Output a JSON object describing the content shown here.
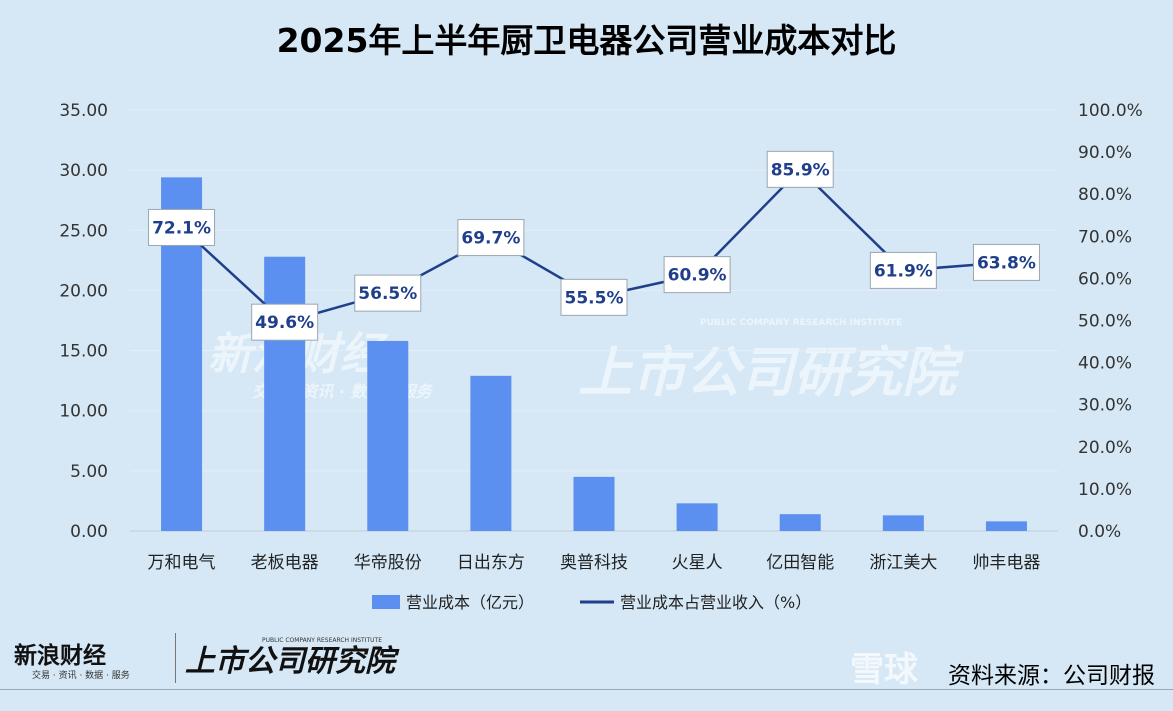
{
  "chart_data": {
    "type": "bar",
    "title": "2025年上半年厨卫电器公司营业成本对比",
    "categories": [
      "万和电气",
      "老板电器",
      "华帝股份",
      "日出东方",
      "奥普科技",
      "火星人",
      "亿田智能",
      "浙江美大",
      "帅丰电器"
    ],
    "series": [
      {
        "name": "营业成本（亿元）",
        "type": "bar",
        "axis": "left",
        "color": "#5b8ff0",
        "values": [
          29.4,
          22.8,
          15.8,
          12.9,
          4.5,
          2.3,
          1.4,
          1.3,
          0.8
        ]
      },
      {
        "name": "营业成本占营业收入（%）",
        "type": "line",
        "axis": "right",
        "color": "#1f3f8c",
        "values": [
          72.1,
          49.6,
          56.5,
          69.7,
          55.5,
          60.9,
          85.9,
          61.9,
          63.8
        ],
        "labels": [
          "72.1%",
          "49.6%",
          "56.5%",
          "69.7%",
          "55.5%",
          "60.9%",
          "85.9%",
          "61.9%",
          "63.8%"
        ]
      }
    ],
    "y_left": {
      "min": 0,
      "max": 35,
      "ticks": [
        "0.00",
        "5.00",
        "10.00",
        "15.00",
        "20.00",
        "25.00",
        "30.00",
        "35.00"
      ]
    },
    "y_right": {
      "min": 0,
      "max": 100,
      "ticks": [
        "0.0%",
        "10.0%",
        "20.0%",
        "30.0%",
        "40.0%",
        "50.0%",
        "60.0%",
        "70.0%",
        "80.0%",
        "90.0%",
        "100.0%"
      ]
    },
    "grid": true,
    "legend_position": "bottom"
  },
  "watermarks": {
    "sina_finance": "新浪财经",
    "sina_sub": "交易 · 资讯 · 数据 · 服务",
    "institute": "上市公司研究院",
    "institute_en": "PUBLIC COMPANY RESEARCH INSTITUTE",
    "xueqiu": "雪球"
  },
  "footer": {
    "sina_brand": "新浪财经",
    "sina_sub": "交易 · 资讯 · 数据 · 服务",
    "institute": "上市公司研究院",
    "institute_en": "PUBLIC COMPANY RESEARCH INSTITUTE",
    "source": "资料来源：公司财报"
  }
}
